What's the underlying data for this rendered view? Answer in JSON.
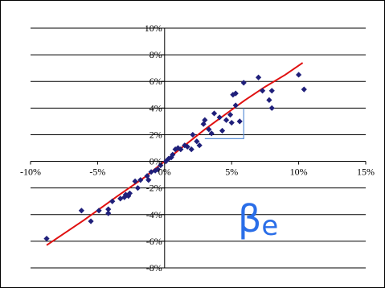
{
  "chart_data": {
    "type": "scatter",
    "title": "",
    "xlabel": "",
    "ylabel": "",
    "xlim": [
      -10,
      15
    ],
    "ylim": [
      -8,
      10
    ],
    "x_ticks": [
      -10,
      -5,
      0,
      5,
      10,
      15
    ],
    "y_ticks": [
      -8,
      -6,
      -4,
      -2,
      0,
      2,
      4,
      6,
      8,
      10
    ],
    "x_tick_labels": [
      "-10%",
      "-5%",
      "0%",
      "5%",
      "10%",
      "15%"
    ],
    "y_tick_labels": [
      "-8%",
      "-6%",
      "-4%",
      "-2%",
      "0%",
      "2%",
      "4%",
      "6%",
      "8%",
      "10%"
    ],
    "grid": "horizontal",
    "annotation": {
      "text": "β",
      "subscript": "e"
    },
    "colors": {
      "points": "#1f1f7a",
      "line": "#e01010",
      "slope_triangle": "#5b8fd6",
      "annotation": "#2a6ee8",
      "grid": "#000000"
    },
    "series": [
      {
        "type": "scatter",
        "points": [
          [
            -8.8,
            -5.8
          ],
          [
            -6.2,
            -3.7
          ],
          [
            -5.5,
            -4.5
          ],
          [
            -4.9,
            -3.7
          ],
          [
            -4.2,
            -3.6
          ],
          [
            -4.2,
            -3.9
          ],
          [
            -3.9,
            -3.0
          ],
          [
            -3.3,
            -2.8
          ],
          [
            -3.0,
            -2.7
          ],
          [
            -2.9,
            -2.5
          ],
          [
            -2.7,
            -2.6
          ],
          [
            -2.6,
            -2.4
          ],
          [
            -2.2,
            -1.5
          ],
          [
            -2.0,
            -2.0
          ],
          [
            -1.8,
            -1.4
          ],
          [
            -1.3,
            -1.1
          ],
          [
            -1.2,
            -1.4
          ],
          [
            -1.0,
            -0.8
          ],
          [
            -0.7,
            -0.7
          ],
          [
            -0.5,
            -0.6
          ],
          [
            -0.3,
            -0.3
          ],
          [
            0.1,
            0.0
          ],
          [
            0.3,
            0.2
          ],
          [
            0.5,
            0.3
          ],
          [
            0.6,
            0.5
          ],
          [
            0.8,
            0.9
          ],
          [
            1.0,
            1.0
          ],
          [
            1.2,
            0.9
          ],
          [
            1.5,
            1.2
          ],
          [
            1.7,
            1.1
          ],
          [
            2.0,
            0.9
          ],
          [
            2.1,
            2.0
          ],
          [
            2.4,
            1.5
          ],
          [
            2.6,
            1.2
          ],
          [
            2.9,
            2.8
          ],
          [
            3.0,
            3.1
          ],
          [
            3.3,
            2.4
          ],
          [
            3.5,
            2.1
          ],
          [
            3.7,
            3.6
          ],
          [
            4.1,
            3.3
          ],
          [
            4.3,
            2.3
          ],
          [
            4.6,
            3.1
          ],
          [
            4.9,
            3.5
          ],
          [
            5.0,
            2.9
          ],
          [
            5.1,
            5.0
          ],
          [
            5.3,
            5.1
          ],
          [
            5.3,
            4.2
          ],
          [
            5.6,
            3.0
          ],
          [
            5.9,
            5.9
          ],
          [
            7.0,
            6.3
          ],
          [
            7.3,
            5.3
          ],
          [
            7.8,
            4.6
          ],
          [
            8.0,
            5.3
          ],
          [
            8.0,
            4.0
          ],
          [
            10.0,
            6.5
          ],
          [
            10.4,
            5.4
          ]
        ]
      },
      {
        "type": "line",
        "points": [
          [
            -8.8,
            -6.3
          ],
          [
            -6.0,
            -4.4
          ],
          [
            -3.5,
            -2.6
          ],
          [
            -1.5,
            -1.2
          ],
          [
            0.0,
            0.0
          ],
          [
            1.5,
            1.2
          ],
          [
            3.0,
            2.4
          ],
          [
            4.5,
            3.5
          ],
          [
            6.0,
            4.6
          ],
          [
            7.5,
            5.6
          ],
          [
            9.0,
            6.5
          ],
          [
            10.3,
            7.4
          ]
        ]
      }
    ],
    "slope_triangle": {
      "x0": 3.0,
      "x1": 5.9,
      "y0": 1.7,
      "y1": 4.0
    }
  }
}
